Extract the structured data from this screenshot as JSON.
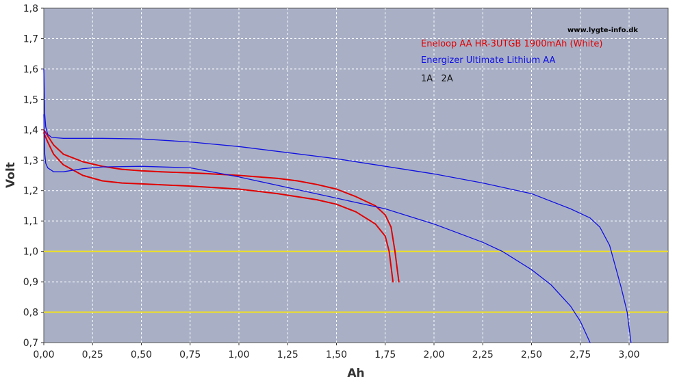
{
  "chart_data": {
    "type": "line",
    "xlabel": "Ah",
    "ylabel": "Volt",
    "xlim": [
      0,
      3.2
    ],
    "ylim": [
      0.7,
      1.8
    ],
    "x_ticks": [
      "0,00",
      "0,25",
      "0,50",
      "0,75",
      "1,00",
      "1,25",
      "1,50",
      "1,75",
      "2,00",
      "2,25",
      "2,50",
      "2,75",
      "3,00"
    ],
    "y_ticks": [
      "0,7",
      "0,8",
      "0,9",
      "1,0",
      "1,1",
      "1,2",
      "1,3",
      "1,4",
      "1,5",
      "1,6",
      "1,7",
      "1,8"
    ],
    "grid": true,
    "watermark": "www.lygte-info.dk",
    "legend_position": "top-right",
    "legend": [
      {
        "label": "Eneloop AA HR-3UTGB 1900mAh (White)",
        "color": "#e00000"
      },
      {
        "label": "Energizer Ultimate Lithium AA",
        "color": "#1010e0"
      }
    ],
    "currents_label": "1A   2A",
    "reference_lines": [
      1.0,
      0.8
    ],
    "colors": {
      "plot_background": "#a9b0c6",
      "grid": "#ffffff",
      "reference_line": "#f0e020",
      "axis_text": "#222222"
    },
    "series": [
      {
        "name": "Eneloop AA HR-3UTGB 1900mAh (White)",
        "label": "1A",
        "color": "#e00000",
        "points": [
          [
            0,
            1.4
          ],
          [
            0.02,
            1.38
          ],
          [
            0.05,
            1.35
          ],
          [
            0.1,
            1.32
          ],
          [
            0.2,
            1.295
          ],
          [
            0.3,
            1.28
          ],
          [
            0.4,
            1.27
          ],
          [
            0.5,
            1.265
          ],
          [
            0.6,
            1.262
          ],
          [
            0.8,
            1.257
          ],
          [
            1.0,
            1.25
          ],
          [
            1.2,
            1.24
          ],
          [
            1.3,
            1.232
          ],
          [
            1.4,
            1.22
          ],
          [
            1.5,
            1.205
          ],
          [
            1.6,
            1.18
          ],
          [
            1.7,
            1.15
          ],
          [
            1.75,
            1.12
          ],
          [
            1.78,
            1.08
          ],
          [
            1.8,
            1.0
          ],
          [
            1.81,
            0.95
          ],
          [
            1.82,
            0.9
          ]
        ]
      },
      {
        "name": "Eneloop AA HR-3UTGB 1900mAh (White)",
        "label": "2A",
        "color": "#e00000",
        "points": [
          [
            0,
            1.39
          ],
          [
            0.02,
            1.36
          ],
          [
            0.05,
            1.32
          ],
          [
            0.1,
            1.285
          ],
          [
            0.2,
            1.25
          ],
          [
            0.3,
            1.232
          ],
          [
            0.4,
            1.225
          ],
          [
            0.5,
            1.222
          ],
          [
            0.75,
            1.215
          ],
          [
            1.0,
            1.205
          ],
          [
            1.2,
            1.19
          ],
          [
            1.4,
            1.17
          ],
          [
            1.5,
            1.155
          ],
          [
            1.6,
            1.13
          ],
          [
            1.7,
            1.09
          ],
          [
            1.75,
            1.05
          ],
          [
            1.77,
            1.0
          ],
          [
            1.78,
            0.95
          ],
          [
            1.79,
            0.9
          ]
        ]
      },
      {
        "name": "Energizer Ultimate Lithium AA",
        "label": "1A",
        "color": "#1010e0",
        "points": [
          [
            0,
            1.6
          ],
          [
            0.005,
            1.45
          ],
          [
            0.01,
            1.41
          ],
          [
            0.02,
            1.385
          ],
          [
            0.04,
            1.375
          ],
          [
            0.1,
            1.372
          ],
          [
            0.3,
            1.372
          ],
          [
            0.5,
            1.37
          ],
          [
            0.75,
            1.36
          ],
          [
            1.0,
            1.345
          ],
          [
            1.25,
            1.325
          ],
          [
            1.5,
            1.305
          ],
          [
            1.75,
            1.28
          ],
          [
            2.0,
            1.255
          ],
          [
            2.25,
            1.225
          ],
          [
            2.5,
            1.19
          ],
          [
            2.7,
            1.14
          ],
          [
            2.8,
            1.11
          ],
          [
            2.85,
            1.08
          ],
          [
            2.9,
            1.02
          ],
          [
            2.93,
            0.95
          ],
          [
            2.96,
            0.88
          ],
          [
            2.99,
            0.8
          ],
          [
            3.0,
            0.75
          ],
          [
            3.01,
            0.7
          ]
        ]
      },
      {
        "name": "Energizer Ultimate Lithium AA",
        "label": "2A",
        "color": "#1010e0",
        "points": [
          [
            0,
            1.45
          ],
          [
            0.005,
            1.32
          ],
          [
            0.01,
            1.29
          ],
          [
            0.02,
            1.275
          ],
          [
            0.05,
            1.262
          ],
          [
            0.1,
            1.262
          ],
          [
            0.2,
            1.272
          ],
          [
            0.3,
            1.278
          ],
          [
            0.5,
            1.28
          ],
          [
            0.75,
            1.275
          ],
          [
            1.0,
            1.245
          ],
          [
            1.25,
            1.21
          ],
          [
            1.5,
            1.175
          ],
          [
            1.75,
            1.14
          ],
          [
            2.0,
            1.09
          ],
          [
            2.25,
            1.03
          ],
          [
            2.35,
            1.0
          ],
          [
            2.5,
            0.94
          ],
          [
            2.6,
            0.89
          ],
          [
            2.7,
            0.82
          ],
          [
            2.75,
            0.77
          ],
          [
            2.8,
            0.7
          ]
        ]
      }
    ]
  }
}
